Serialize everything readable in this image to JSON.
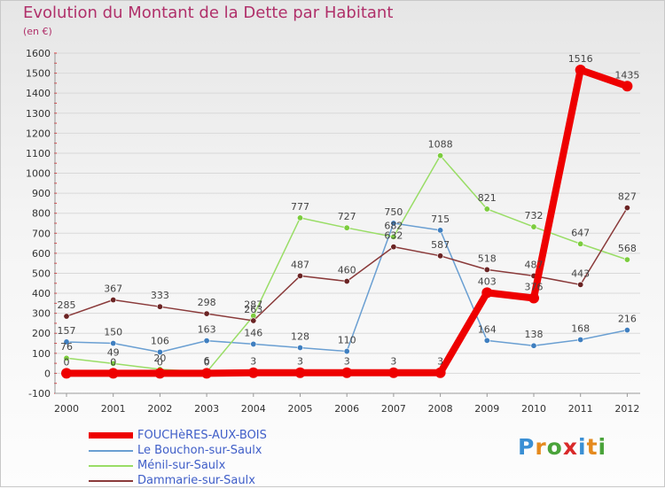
{
  "header": {
    "title": "Evolution du Montant de la Dette par Habitant",
    "unit": "(en €)"
  },
  "logo": {
    "text": "Proxiti",
    "letters": [
      {
        "ch": "P",
        "color": "#3a8fd4"
      },
      {
        "ch": "r",
        "color": "#e58a1e"
      },
      {
        "ch": "o",
        "color": "#4aa33a"
      },
      {
        "ch": "x",
        "color": "#d92a2a"
      },
      {
        "ch": "i",
        "color": "#3a8fd4"
      },
      {
        "ch": "t",
        "color": "#e58a1e"
      },
      {
        "ch": "i",
        "color": "#4aa33a"
      }
    ]
  },
  "colors": {
    "title": "#b0306a",
    "legend_text": "#3f5ec8",
    "axis_label": "#333333",
    "value_label": "#444444",
    "gridline": "#d9d9d9",
    "tick_mark": "#e03030"
  },
  "chart_data": {
    "type": "line",
    "title": "Evolution du Montant de la Dette par Habitant",
    "ylabel": "(en €)",
    "xlabel": "",
    "ylim": [
      -100,
      1600
    ],
    "y_ticks": [
      -100,
      0,
      100,
      200,
      300,
      400,
      500,
      600,
      700,
      800,
      900,
      1000,
      1100,
      1200,
      1300,
      1400,
      1500,
      1600
    ],
    "grid": "horizontal",
    "legend_position": "bottom-left",
    "categories": [
      "2000",
      "2001",
      "2002",
      "2003",
      "2004",
      "2005",
      "2006",
      "2007",
      "2008",
      "2009",
      "2010",
      "2011",
      "2012"
    ],
    "series": [
      {
        "name": "FOUCHèRES-AUX-BOIS",
        "color": "#ee0000",
        "thick": true,
        "values": [
          0,
          0,
          0,
          0,
          3,
          3,
          3,
          3,
          3,
          403,
          376,
          1516,
          1435
        ],
        "labels": [
          "0",
          "0",
          "0",
          "0",
          "3",
          "3",
          "3",
          "3",
          "3",
          "403",
          "376",
          "1516",
          "1435"
        ]
      },
      {
        "name": "Le Bouchon-sur-Saulx",
        "color": "#6a9fd2",
        "marker": "#3f7fc0",
        "thick": false,
        "values": [
          157,
          150,
          106,
          163,
          146,
          128,
          110,
          750,
          715,
          164,
          138,
          168,
          216
        ],
        "labels": [
          "157",
          "150",
          "106",
          "163",
          "146",
          "128",
          "110",
          "750",
          "715",
          "164",
          "138",
          "168",
          "216"
        ]
      },
      {
        "name": "Ménil-sur-Saulx",
        "color": "#99dd66",
        "marker": "#7ccc3e",
        "thick": false,
        "values": [
          76,
          49,
          20,
          6,
          287,
          777,
          727,
          682,
          1088,
          821,
          732,
          647,
          568
        ],
        "labels": [
          "76",
          "49",
          "20",
          "6",
          "287",
          "777",
          "727",
          "682",
          "1088",
          "821",
          "732",
          "647",
          "568"
        ]
      },
      {
        "name": "Dammarie-sur-Saulx",
        "color": "#8a3a3a",
        "marker": "#6b2424",
        "thick": false,
        "values": [
          285,
          367,
          333,
          298,
          263,
          487,
          460,
          632,
          587,
          518,
          487,
          443,
          827
        ],
        "labels": [
          "285",
          "367",
          "333",
          "298",
          "263",
          "487",
          "460",
          "632",
          "587",
          "518",
          "487",
          "443",
          "827"
        ]
      }
    ]
  }
}
